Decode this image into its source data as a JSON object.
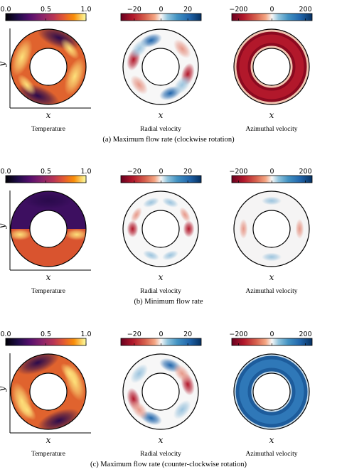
{
  "subfigures": [
    {
      "caption": "(a)  Maximum flow rate (clockwise rotation)",
      "panels": [
        {
          "title": "Temperature",
          "field": "temperature",
          "pattern": "cw",
          "colorbar": {
            "cmap": "inferno",
            "ticks": [
              "0.0",
              "0.5",
              "1.0"
            ],
            "tick_values": [
              0,
              0.5,
              1
            ],
            "range": [
              0,
              1
            ]
          }
        },
        {
          "title": "Radial velocity",
          "field": "radial",
          "pattern": "cw_lobes",
          "colorbar": {
            "cmap": "RdBu",
            "ticks": [
              "−20",
              "0",
              "20"
            ],
            "tick_values": [
              -20,
              0,
              20
            ],
            "range": [
              -30,
              30
            ]
          }
        },
        {
          "title": "Azimuthal velocity",
          "field": "azimuthal",
          "pattern": "strong_red",
          "colorbar": {
            "cmap": "RdBu",
            "ticks": [
              "−200",
              "0",
              "200"
            ],
            "tick_values": [
              -200,
              0,
              200
            ],
            "range": [
              -240,
              240
            ]
          }
        }
      ]
    },
    {
      "caption": "(b)  Minimum flow rate",
      "panels": [
        {
          "title": "Temperature",
          "field": "temperature",
          "pattern": "stratified",
          "colorbar": {
            "cmap": "inferno",
            "ticks": [
              "0.0",
              "0.5",
              "1.0"
            ],
            "tick_values": [
              0,
              0.5,
              1
            ],
            "range": [
              0,
              1
            ]
          }
        },
        {
          "title": "Radial velocity",
          "field": "radial",
          "pattern": "side_lobes",
          "colorbar": {
            "cmap": "RdBu",
            "ticks": [
              "−20",
              "0",
              "20"
            ],
            "tick_values": [
              -20,
              0,
              20
            ],
            "range": [
              -30,
              30
            ]
          }
        },
        {
          "title": "Azimuthal velocity",
          "field": "azimuthal",
          "pattern": "weak",
          "colorbar": {
            "cmap": "RdBu",
            "ticks": [
              "−200",
              "0",
              "200"
            ],
            "tick_values": [
              -200,
              0,
              200
            ],
            "range": [
              -240,
              240
            ]
          }
        }
      ]
    },
    {
      "caption": "(c)  Maximum flow rate (counter-clockwise rotation)",
      "panels": [
        {
          "title": "Temperature",
          "field": "temperature",
          "pattern": "ccw",
          "colorbar": {
            "cmap": "inferno",
            "ticks": [
              "0.0",
              "0.5",
              "1.0"
            ],
            "tick_values": [
              0,
              0.5,
              1
            ],
            "range": [
              0,
              1
            ]
          }
        },
        {
          "title": "Radial velocity",
          "field": "radial",
          "pattern": "ccw_lobes",
          "colorbar": {
            "cmap": "RdBu",
            "ticks": [
              "−20",
              "0",
              "20"
            ],
            "tick_values": [
              -20,
              0,
              20
            ],
            "range": [
              -30,
              30
            ]
          }
        },
        {
          "title": "Azimuthal velocity",
          "field": "azimuthal",
          "pattern": "strong_blue",
          "colorbar": {
            "cmap": "RdBu",
            "ticks": [
              "−200",
              "0",
              "200"
            ],
            "tick_values": [
              -200,
              0,
              200
            ],
            "range": [
              -240,
              240
            ]
          }
        }
      ]
    }
  ],
  "axis_labels": {
    "x": "x",
    "y": "y"
  }
}
